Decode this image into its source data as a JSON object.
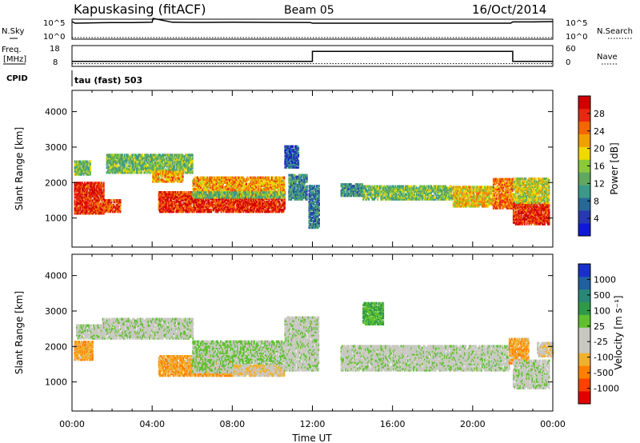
{
  "header": {
    "station": "Kapuskasing (fitACF)",
    "beam": "Beam 05",
    "date": "16/Oct/2014"
  },
  "colors": {
    "power_scale": [
      "#1018d8",
      "#2838b0",
      "#286898",
      "#3a9a8a",
      "#60a860",
      "#8cc83c",
      "#f0d800",
      "#f0a000",
      "#f06800",
      "#e82810",
      "#d00000"
    ],
    "velocity_scale": [
      "#e00000",
      "#ff4000",
      "#ff8000",
      "#f0b030",
      "#c8c8c0",
      "#c8c8c0",
      "#60c030",
      "#2e9a48",
      "#288878",
      "#2060a0",
      "#1830c8"
    ],
    "ground_scatter": "#c8c8c0"
  },
  "chart_data": [
    {
      "type": "line",
      "name": "nsky-panel",
      "left_ticks": [
        "10^5",
        "10^0"
      ],
      "right_ticks": [
        "10^5",
        "10^0"
      ],
      "left_label": "N.Sky",
      "right_label": "N.Search",
      "x_hours": [
        0,
        0.15,
        1,
        2,
        3,
        4,
        4.05,
        5,
        6,
        8,
        10,
        11.9,
        12,
        14,
        16,
        18,
        20,
        21.9,
        22,
        23,
        24
      ],
      "nsky_log": [
        5.0,
        4.5,
        4.6,
        4.7,
        4.7,
        4.8,
        6.0,
        4.8,
        4.75,
        4.8,
        4.75,
        4.7,
        4.5,
        4.5,
        4.5,
        4.5,
        4.5,
        4.5,
        4.9,
        4.9,
        5.0
      ],
      "nsearch_log": 0.0
    },
    {
      "type": "line",
      "name": "freq-panel",
      "left_ticks": [
        "18",
        "8"
      ],
      "right_ticks": [
        "60",
        "0"
      ],
      "left_label": "Freq.\n[MHz]",
      "right_label": "Nave",
      "freq_mhz": [
        {
          "from": 0,
          "to": 12,
          "value": 10
        },
        {
          "from": 12,
          "to": 22,
          "value": 16
        },
        {
          "from": 22,
          "to": 24,
          "value": 10
        }
      ],
      "nave": [
        {
          "from": 0,
          "to": 24,
          "value": 4
        }
      ],
      "ylim_freq": [
        8,
        18
      ],
      "ylim_nave": [
        0,
        60
      ]
    },
    {
      "type": "heatmap",
      "name": "cpid-strip",
      "label": "CPID",
      "text": "tau (fast) 503"
    },
    {
      "type": "heatmap",
      "name": "power-panel",
      "ylabel": "Slant Range [km]",
      "yticks": [
        1000,
        2000,
        3000,
        4000
      ],
      "ylim": [
        180,
        4600
      ],
      "xlim": [
        0,
        24
      ],
      "colorbar_label": "Power [dB]",
      "colorbar_ticks": [
        "4",
        "8",
        "12",
        "16",
        "20",
        "24",
        "28"
      ],
      "colorbar_range": [
        0,
        32
      ],
      "regions": [
        {
          "t0": 0.1,
          "t1": 1.6,
          "r0": 1100,
          "r1": 2000,
          "v": 28
        },
        {
          "t0": 0.1,
          "t1": 0.9,
          "r0": 2200,
          "r1": 2600,
          "v": 14
        },
        {
          "t0": 1.6,
          "t1": 2.4,
          "r0": 1150,
          "r1": 1500,
          "v": 26
        },
        {
          "t0": 1.7,
          "t1": 6.0,
          "r0": 2250,
          "r1": 2750,
          "v": 14
        },
        {
          "t0": 4.0,
          "t1": 5.5,
          "r0": 2000,
          "r1": 2300,
          "v": 22
        },
        {
          "t0": 4.3,
          "t1": 10.6,
          "r0": 1150,
          "r1": 1700,
          "v": 28
        },
        {
          "t0": 6.0,
          "t1": 10.6,
          "r0": 1700,
          "r1": 2150,
          "v": 22
        },
        {
          "t0": 6.0,
          "t1": 10.6,
          "r0": 1550,
          "r1": 1700,
          "v": 14
        },
        {
          "t0": 10.6,
          "t1": 11.3,
          "r0": 2400,
          "r1": 3000,
          "v": 6
        },
        {
          "t0": 10.8,
          "t1": 11.7,
          "r0": 1500,
          "r1": 2200,
          "v": 10
        },
        {
          "t0": 11.8,
          "t1": 12.3,
          "r0": 700,
          "r1": 1900,
          "v": 8
        },
        {
          "t0": 13.4,
          "t1": 14.5,
          "r0": 1600,
          "r1": 1950,
          "v": 10
        },
        {
          "t0": 14.5,
          "t1": 19.0,
          "r0": 1500,
          "r1": 1900,
          "v": 14
        },
        {
          "t0": 19.0,
          "t1": 21.0,
          "r0": 1300,
          "r1": 1850,
          "v": 20
        },
        {
          "t0": 21.0,
          "t1": 22.0,
          "r0": 1250,
          "r1": 2100,
          "v": 24
        },
        {
          "t0": 22.0,
          "t1": 23.8,
          "r0": 800,
          "r1": 1400,
          "v": 28
        },
        {
          "t0": 22.0,
          "t1": 23.8,
          "r0": 1400,
          "r1": 2100,
          "v": 18
        }
      ]
    },
    {
      "type": "heatmap",
      "name": "velocity-panel",
      "ylabel": "Slant Range [km]",
      "yticks": [
        1000,
        2000,
        3000,
        4000
      ],
      "ylim": [
        180,
        4600
      ],
      "xlim": [
        0,
        24
      ],
      "xlabel": "Time UT",
      "xticks": [
        "00:00",
        "04:00",
        "08:00",
        "12:00",
        "16:00",
        "20:00",
        "00:00"
      ],
      "colorbar_label": "Velocity [m s⁻¹]",
      "colorbar_ticks": [
        "-1000",
        "-500",
        "-100",
        "-25",
        "25",
        "100",
        "500",
        "1000"
      ],
      "regions": [
        {
          "t0": 0.1,
          "t1": 1.0,
          "r0": 1600,
          "r1": 2100,
          "v": -500
        },
        {
          "t0": 0.2,
          "t1": 1.5,
          "r0": 2200,
          "r1": 2600,
          "v": 0
        },
        {
          "t0": 1.5,
          "t1": 6.0,
          "r0": 2200,
          "r1": 2750,
          "v": 0
        },
        {
          "t0": 4.3,
          "t1": 8.0,
          "r0": 1150,
          "r1": 1700,
          "v": -500
        },
        {
          "t0": 6.0,
          "t1": 10.6,
          "r0": 1250,
          "r1": 2150,
          "v": 100
        },
        {
          "t0": 8.0,
          "t1": 10.6,
          "r0": 1150,
          "r1": 1450,
          "v": -300
        },
        {
          "t0": 10.6,
          "t1": 12.3,
          "r0": 1300,
          "r1": 2800,
          "v": 0
        },
        {
          "t0": 13.4,
          "t1": 21.8,
          "r0": 1300,
          "r1": 2000,
          "v": 0
        },
        {
          "t0": 14.5,
          "t1": 15.5,
          "r0": 2600,
          "r1": 3200,
          "v": 300
        },
        {
          "t0": 21.8,
          "t1": 22.8,
          "r0": 1500,
          "r1": 2200,
          "v": -500
        },
        {
          "t0": 22.0,
          "t1": 23.8,
          "r0": 800,
          "r1": 1600,
          "v": 0
        },
        {
          "t0": 23.2,
          "t1": 24.0,
          "r0": 1700,
          "r1": 2100,
          "v": -300
        }
      ]
    }
  ]
}
